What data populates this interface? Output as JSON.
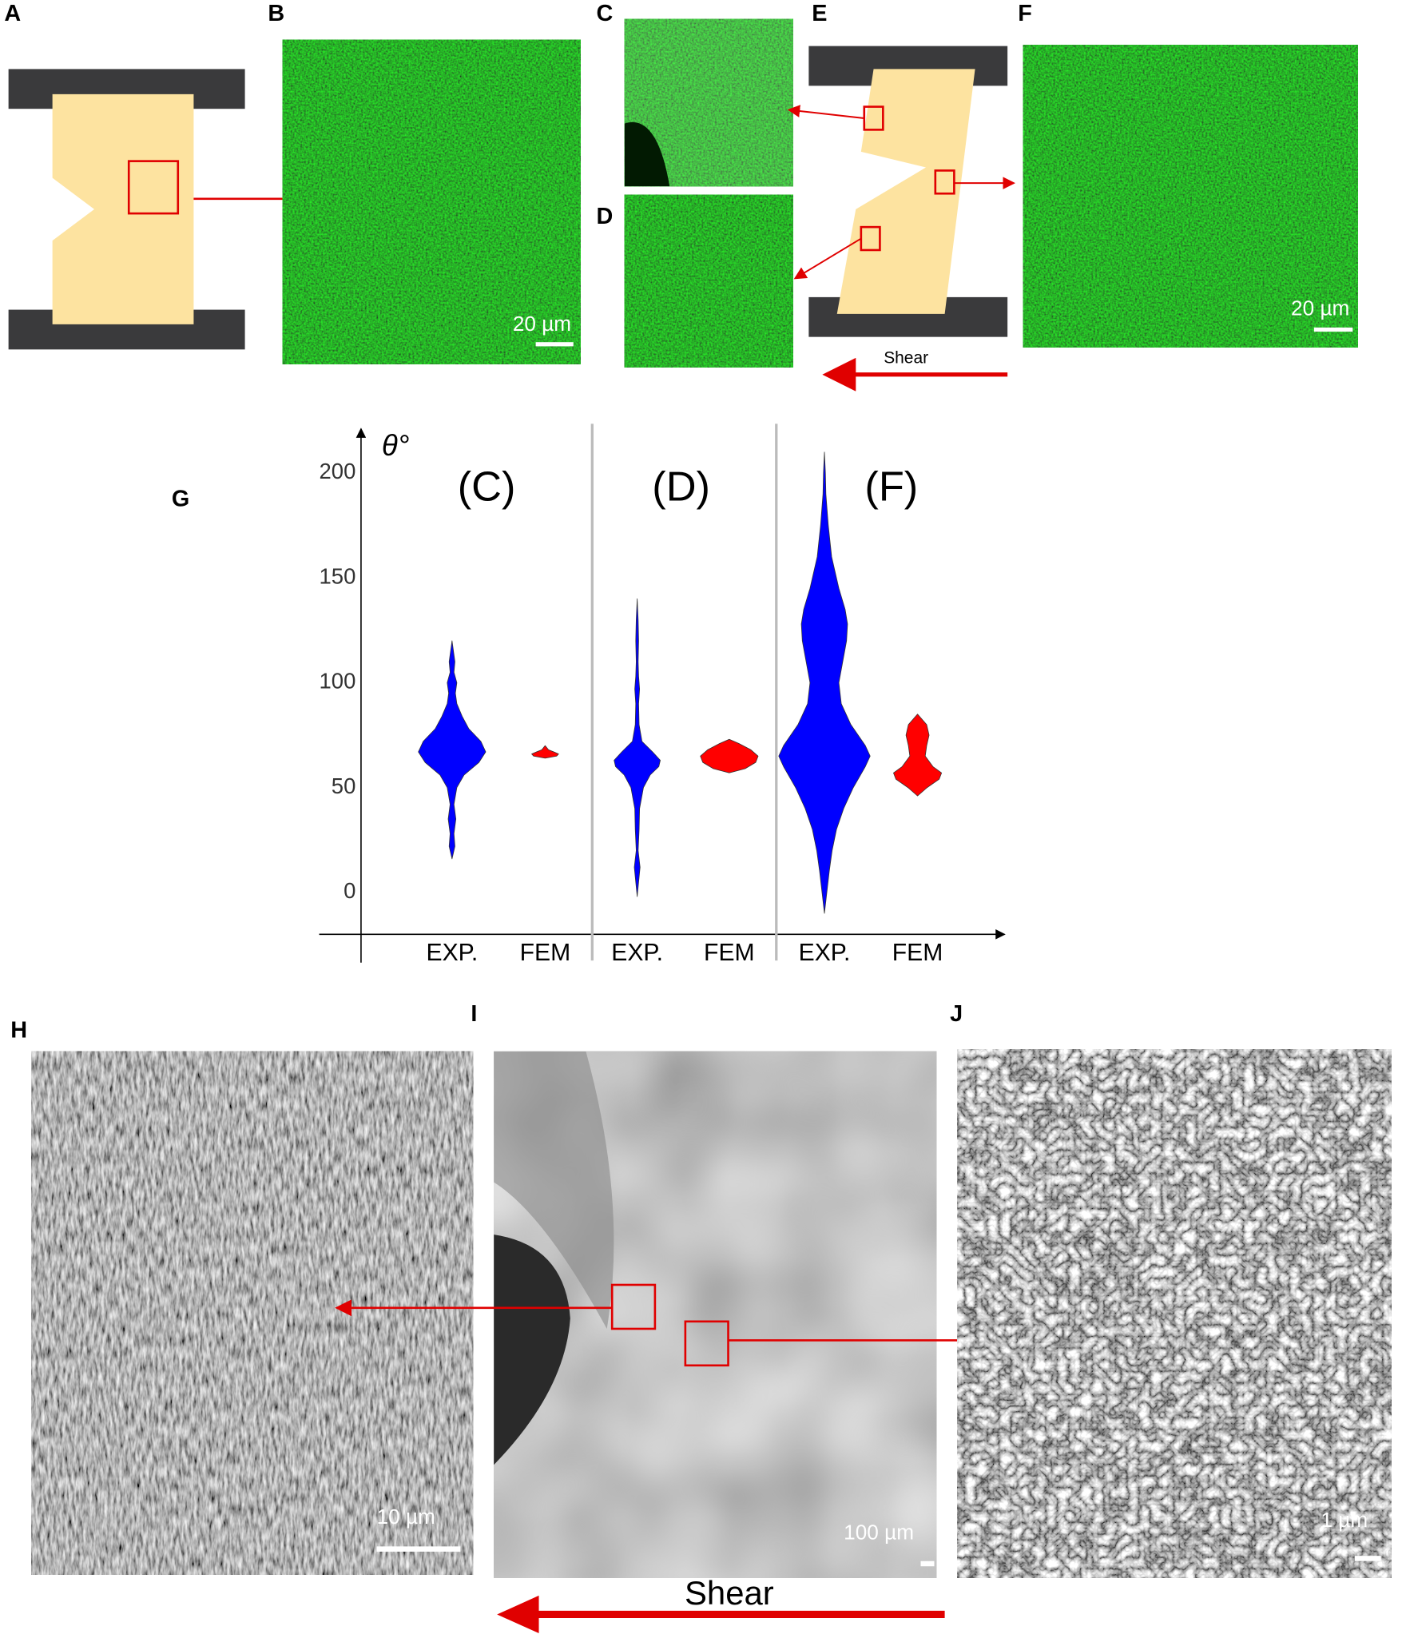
{
  "panel_labels": {
    "A": "A",
    "B": "B",
    "C": "C",
    "D": "D",
    "E": "E",
    "F": "F",
    "G": "G",
    "H": "H",
    "I": "I",
    "J": "J"
  },
  "scale_bars": {
    "B": "20 µm",
    "F": "20 µm",
    "H": "10 µm",
    "I": "100 µm",
    "J": "1 µm"
  },
  "shear_labels": {
    "top": "Shear",
    "bottom": "Shear"
  },
  "chart_data": {
    "type": "violin",
    "y_label": "θ°",
    "ylim": [
      -20,
      221
    ],
    "yticks": [
      0,
      50,
      100,
      150,
      200
    ],
    "groups": [
      {
        "title": "(C)",
        "series": [
          {
            "name": "EXP.",
            "color": "#0000ff",
            "values": [
              16,
              22,
              28,
              35,
              42,
              50,
              56,
              62,
              67,
              72,
              78,
              84,
              90,
              95,
              100,
              105,
              110,
              120
            ],
            "density": [
              0,
              0.06,
              0.04,
              0.08,
              0.04,
              0.1,
              0.25,
              0.56,
              0.7,
              0.6,
              0.35,
              0.21,
              0.1,
              0.07,
              0.1,
              0.04,
              0.06,
              0
            ]
          },
          {
            "name": "FEM",
            "color": "#ff0000",
            "values": [
              64,
              65,
              66,
              67,
              68,
              70
            ],
            "density": [
              0,
              0.24,
              0.28,
              0.18,
              0.07,
              0
            ]
          }
        ]
      },
      {
        "title": "(D)",
        "series": [
          {
            "name": "EXP.",
            "color": "#0000ff",
            "values": [
              -2,
              5,
              12,
              20,
              30,
              40,
              50,
              56,
              60,
              63,
              67,
              72,
              80,
              90,
              97,
              103,
              110,
              120,
              130,
              140
            ],
            "density": [
              0,
              0.03,
              0.06,
              0.02,
              0.04,
              0.05,
              0.13,
              0.27,
              0.45,
              0.48,
              0.32,
              0.1,
              0.04,
              0.03,
              0.05,
              0.03,
              0.02,
              0.03,
              0.02,
              0
            ]
          },
          {
            "name": "FEM",
            "color": "#ff0000",
            "values": [
              57,
              59,
              62,
              65,
              68,
              71,
              73
            ],
            "density": [
              0,
              0.33,
              0.55,
              0.6,
              0.45,
              0.2,
              0
            ]
          }
        ]
      },
      {
        "title": "(F)",
        "series": [
          {
            "name": "EXP.",
            "color": "#0000ff",
            "values": [
              -10,
              0,
              10,
              20,
              30,
              40,
              50,
              60,
              65,
              70,
              80,
              90,
              100,
              110,
              120,
              128,
              135,
              145,
              160,
              175,
              190,
              200,
              210
            ],
            "density": [
              0,
              0.05,
              0.1,
              0.16,
              0.25,
              0.4,
              0.6,
              0.85,
              0.95,
              0.85,
              0.55,
              0.35,
              0.3,
              0.38,
              0.46,
              0.48,
              0.43,
              0.3,
              0.15,
              0.08,
              0.03,
              0.02,
              0
            ]
          },
          {
            "name": "FEM",
            "color": "#ff0000",
            "values": [
              46,
              50,
              54,
              57,
              60,
              65,
              70,
              75,
              80,
              85
            ],
            "density": [
              0,
              0.2,
              0.45,
              0.5,
              0.32,
              0.16,
              0.19,
              0.24,
              0.19,
              0
            ]
          }
        ]
      }
    ]
  }
}
